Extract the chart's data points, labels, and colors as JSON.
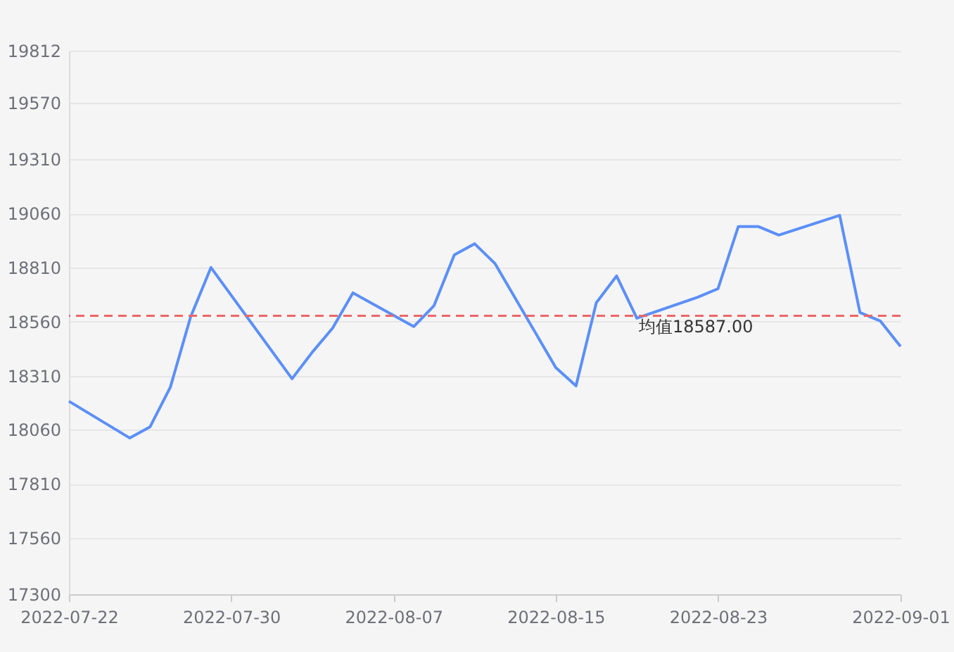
{
  "chart_data": {
    "type": "line",
    "x": [
      "2022-07-22",
      "2022-07-25",
      "2022-07-26",
      "2022-07-27",
      "2022-07-28",
      "2022-07-29",
      "2022-08-02",
      "2022-08-03",
      "2022-08-04",
      "2022-08-05",
      "2022-08-08",
      "2022-08-09",
      "2022-08-10",
      "2022-08-11",
      "2022-08-12",
      "2022-08-15",
      "2022-08-16",
      "2022-08-17",
      "2022-08-18",
      "2022-08-19",
      "2022-08-22",
      "2022-08-23",
      "2022-08-24",
      "2022-08-25",
      "2022-08-26",
      "2022-08-29",
      "2022-08-30",
      "2022-08-31",
      "2022-09-01"
    ],
    "series": [
      {
        "color": "#5b8ff9",
        "values": [
          18192,
          18022,
          18074,
          18257,
          18582,
          18810,
          18296,
          18419,
          18530,
          18693,
          18537,
          18634,
          18868,
          18920,
          18829,
          18348,
          18263,
          18647,
          18771,
          18576,
          18673,
          18712,
          18999,
          18999,
          18960,
          19051,
          18602,
          18563,
          18445
        ]
      }
    ],
    "xlim": [
      "2022-07-22",
      "2022-09-01"
    ],
    "xticks": [
      "2022-07-22",
      "2022-07-30",
      "2022-08-07",
      "2022-08-15",
      "2022-08-23",
      "2022-09-01"
    ],
    "ylim": [
      17300,
      19812
    ],
    "yticks": [
      17300,
      17560,
      17810,
      18060,
      18310,
      18560,
      18810,
      19060,
      19310,
      19570,
      19812
    ],
    "ref_lines": [
      {
        "axis": "y",
        "value": 18587,
        "label": "均值18587.00",
        "color": "#ee6666",
        "line_style": "dashed"
      }
    ],
    "grid": "y",
    "marker": "none",
    "line_style": "solid"
  }
}
